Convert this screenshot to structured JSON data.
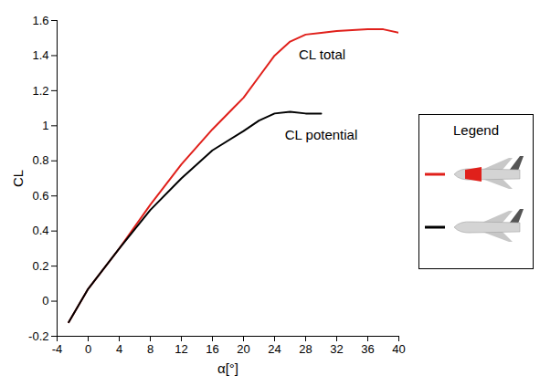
{
  "chart_data": {
    "type": "line",
    "x_label": "α[°]",
    "y_label": "CL",
    "xlim": [
      -4,
      40
    ],
    "xticks": [
      -4,
      0,
      4,
      8,
      12,
      16,
      20,
      24,
      28,
      32,
      36,
      40
    ],
    "ylim": [
      -0.2,
      1.6
    ],
    "yticks": [
      -0.2,
      0,
      0.2,
      0.4,
      0.6,
      0.8,
      1,
      1.2,
      1.4,
      1.6
    ],
    "legend": "right",
    "legend_title": "Legend",
    "series": [
      {
        "name": "CL total",
        "color": "#e0201b",
        "x": [
          -2.5,
          0,
          4,
          8,
          12,
          16,
          20,
          22,
          24,
          26,
          28,
          30,
          32,
          36,
          38,
          40
        ],
        "values": [
          -0.12,
          0.07,
          0.3,
          0.55,
          0.78,
          0.98,
          1.16,
          1.28,
          1.4,
          1.48,
          1.52,
          1.53,
          1.54,
          1.55,
          1.55,
          1.53
        ]
      },
      {
        "name": "CL potential",
        "color": "#000000",
        "x": [
          -2.5,
          0,
          4,
          8,
          12,
          16,
          20,
          22,
          24,
          26,
          28,
          30
        ],
        "values": [
          -0.12,
          0.07,
          0.3,
          0.52,
          0.7,
          0.86,
          0.97,
          1.03,
          1.07,
          1.08,
          1.07,
          1.07
        ]
      }
    ]
  }
}
